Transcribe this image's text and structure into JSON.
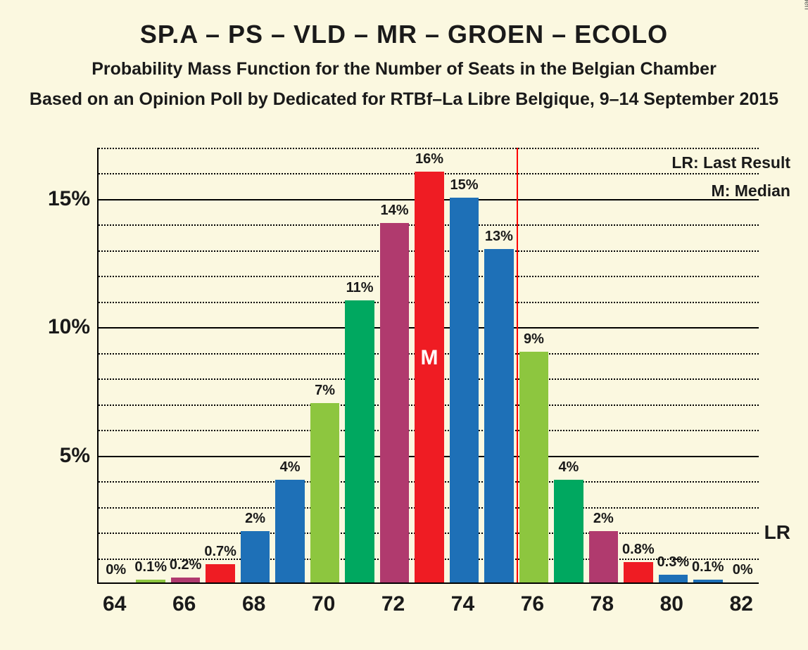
{
  "title": "SP.A – PS – VLD – MR – GROEN – ECOLO",
  "subtitle1": "Probability Mass Function for the Number of Seats in the Belgian Chamber",
  "subtitle2": "Based on an Opinion Poll by Dedicated for RTBf–La Libre Belgique, 9–14 September 2015",
  "copyright": "© 2019 Filip van Laenen",
  "legend_lr": "LR: Last Result",
  "legend_m": "M: Median",
  "lr_text": "LR",
  "median_text": "M",
  "chart": {
    "type": "bar",
    "background_color": "#fbf8e0",
    "axis_color": "#000000",
    "title_fontsize": 36,
    "subtitle_fontsize": 25,
    "label_fontsize": 20,
    "tick_fontsize": 30,
    "xlim": [
      63.5,
      82.5
    ],
    "ylim": [
      0,
      17
    ],
    "ytick_major": [
      5,
      10,
      15
    ],
    "ytick_minor_step": 1,
    "xtick_step": 2,
    "xtick_start": 64,
    "xtick_end": 82,
    "bar_width": 0.84,
    "lr_value": 76,
    "lr_line_color": "#ff0000",
    "median_x": 73,
    "bars": [
      {
        "x": 64,
        "value": 0,
        "label": "0%",
        "color": "#1e70b7"
      },
      {
        "x": 65,
        "value": 0.1,
        "label": "0.1%",
        "color": "#8dc63f"
      },
      {
        "x": 66,
        "value": 0.2,
        "label": "0.2%",
        "color": "#b03a6e"
      },
      {
        "x": 67,
        "value": 0.7,
        "label": "0.7%",
        "color": "#ef1c23"
      },
      {
        "x": 68,
        "value": 2,
        "label": "2%",
        "color": "#1e70b7"
      },
      {
        "x": 69,
        "value": 4,
        "label": "4%",
        "color": "#1e70b7"
      },
      {
        "x": 70,
        "value": 7,
        "label": "7%",
        "color": "#8dc63f"
      },
      {
        "x": 71,
        "value": 11,
        "label": "11%",
        "color": "#00a860"
      },
      {
        "x": 72,
        "value": 14,
        "label": "14%",
        "color": "#b03a6e"
      },
      {
        "x": 73,
        "value": 16,
        "label": "16%",
        "color": "#ef1c23"
      },
      {
        "x": 74,
        "value": 15,
        "label": "15%",
        "color": "#1e70b7"
      },
      {
        "x": 75,
        "value": 13,
        "label": "13%",
        "color": "#1e70b7"
      },
      {
        "x": 76,
        "value": 9,
        "label": "9%",
        "color": "#8dc63f"
      },
      {
        "x": 77,
        "value": 4,
        "label": "4%",
        "color": "#00a860"
      },
      {
        "x": 78,
        "value": 2,
        "label": "2%",
        "color": "#b03a6e"
      },
      {
        "x": 79,
        "value": 0.8,
        "label": "0.8%",
        "color": "#ef1c23"
      },
      {
        "x": 80,
        "value": 0.3,
        "label": "0.3%",
        "color": "#1e70b7"
      },
      {
        "x": 81,
        "value": 0.1,
        "label": "0.1%",
        "color": "#1e70b7"
      },
      {
        "x": 82,
        "value": 0,
        "label": "0%",
        "color": "#8dc63f"
      }
    ]
  }
}
